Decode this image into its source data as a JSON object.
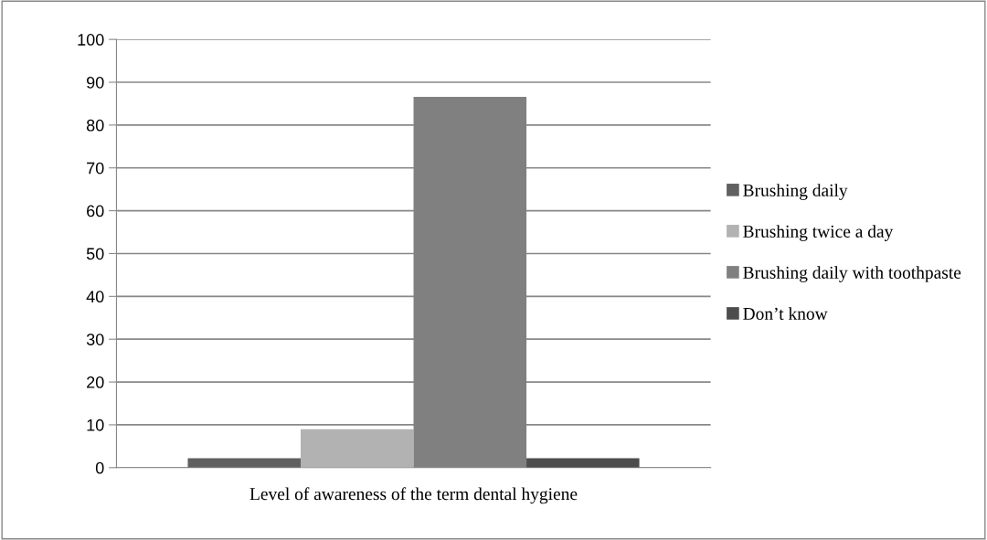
{
  "chart_data": {
    "type": "bar",
    "xlabel": "Level of awareness of the term dental hygiene",
    "categories": [
      null
    ],
    "series": [
      {
        "name": "Brushing daily",
        "color": "#606060",
        "values": [
          2.2
        ]
      },
      {
        "name": "Brushing twice a day",
        "color": "#b2b2b2",
        "values": [
          9.0
        ]
      },
      {
        "name": "Brushing daily with toothpaste",
        "color": "#808080",
        "values": [
          86.6
        ]
      },
      {
        "name": "Don’t know",
        "color": "#4d4d4d",
        "values": [
          2.2
        ]
      }
    ],
    "ylim": [
      0,
      100
    ],
    "yticks": [
      0,
      10,
      20,
      30,
      40,
      50,
      60,
      70,
      80,
      90,
      100
    ],
    "grid": "y",
    "legend": "right"
  }
}
